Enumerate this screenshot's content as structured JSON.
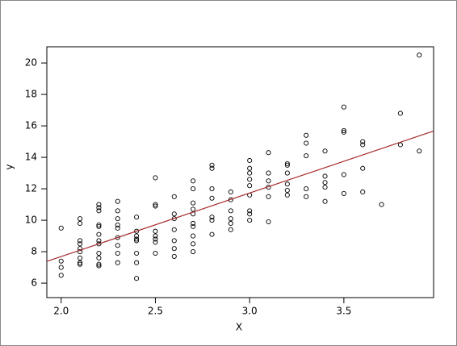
{
  "chart_data": {
    "type": "scatter",
    "xlabel": "X",
    "ylabel": "y",
    "x": [
      2.0,
      2.0,
      2.0,
      2.0,
      2.1,
      2.1,
      2.1,
      2.1,
      2.1,
      2.1,
      2.1,
      2.1,
      2.1,
      2.2,
      2.2,
      2.2,
      2.2,
      2.2,
      2.2,
      2.2,
      2.2,
      2.2,
      2.2,
      2.2,
      2.2,
      2.3,
      2.3,
      2.3,
      2.3,
      2.3,
      2.3,
      2.3,
      2.3,
      2.3,
      2.4,
      2.4,
      2.4,
      2.4,
      2.4,
      2.4,
      2.4,
      2.4,
      2.5,
      2.5,
      2.5,
      2.5,
      2.5,
      2.5,
      2.5,
      2.5,
      2.6,
      2.6,
      2.6,
      2.6,
      2.6,
      2.6,
      2.6,
      2.7,
      2.7,
      2.7,
      2.7,
      2.7,
      2.7,
      2.7,
      2.7,
      2.7,
      2.7,
      2.8,
      2.8,
      2.8,
      2.8,
      2.8,
      2.8,
      2.8,
      2.9,
      2.9,
      2.9,
      2.9,
      2.9,
      2.9,
      3.0,
      3.0,
      3.0,
      3.0,
      3.0,
      3.0,
      3.0,
      3.0,
      3.0,
      3.1,
      3.1,
      3.1,
      3.1,
      3.1,
      3.1,
      3.2,
      3.2,
      3.2,
      3.2,
      3.2,
      3.2,
      3.3,
      3.3,
      3.3,
      3.3,
      3.3,
      3.4,
      3.4,
      3.4,
      3.4,
      3.4,
      3.5,
      3.5,
      3.5,
      3.5,
      3.5,
      3.6,
      3.6,
      3.6,
      3.6,
      3.7,
      3.8,
      3.8,
      3.9,
      3.9
    ],
    "y": [
      9.5,
      7.4,
      7.0,
      6.5,
      10.1,
      9.8,
      8.7,
      8.5,
      8.2,
      8.0,
      7.6,
      7.3,
      7.2,
      11.0,
      10.8,
      10.6,
      9.7,
      9.6,
      9.1,
      8.7,
      8.5,
      7.9,
      7.6,
      7.2,
      7.1,
      11.2,
      10.6,
      10.1,
      9.7,
      9.5,
      8.9,
      8.4,
      7.9,
      7.3,
      10.2,
      9.3,
      9.0,
      8.8,
      8.7,
      7.9,
      7.3,
      6.3,
      12.7,
      11.0,
      10.9,
      9.3,
      9.0,
      8.8,
      8.6,
      7.9,
      11.5,
      10.4,
      10.1,
      9.4,
      8.7,
      8.2,
      7.7,
      12.5,
      12.0,
      11.1,
      10.7,
      10.4,
      9.8,
      9.6,
      9.0,
      8.5,
      8.0,
      13.5,
      13.3,
      12.0,
      11.4,
      10.2,
      10.0,
      9.1,
      11.8,
      11.3,
      10.6,
      10.1,
      9.8,
      9.4,
      13.8,
      13.3,
      13.0,
      12.6,
      12.2,
      11.6,
      10.6,
      10.4,
      10.0,
      14.3,
      13.0,
      12.5,
      12.1,
      11.5,
      9.9,
      13.6,
      13.5,
      13.0,
      12.3,
      11.9,
      11.6,
      15.4,
      14.9,
      14.1,
      12.0,
      11.5,
      14.4,
      12.8,
      12.4,
      12.1,
      11.2,
      17.2,
      15.7,
      15.6,
      12.9,
      11.7,
      15.0,
      14.8,
      13.3,
      11.8,
      11.0,
      16.8,
      14.8,
      20.5,
      14.4
    ],
    "color": "#000000",
    "regression": {
      "intercept": -0.39,
      "slope": 4.04,
      "color": "#a52a2a"
    },
    "xlim": [
      1.924,
      3.976
    ],
    "ylim": [
      5.08,
      21.03
    ],
    "xticks": [
      {
        "value": 2.0,
        "label": "2.0"
      },
      2.5,
      {
        "value": 3.0,
        "label": "3.0"
      },
      3.5
    ],
    "yticks": [
      6,
      8,
      10,
      12,
      14,
      16,
      18,
      20
    ]
  }
}
